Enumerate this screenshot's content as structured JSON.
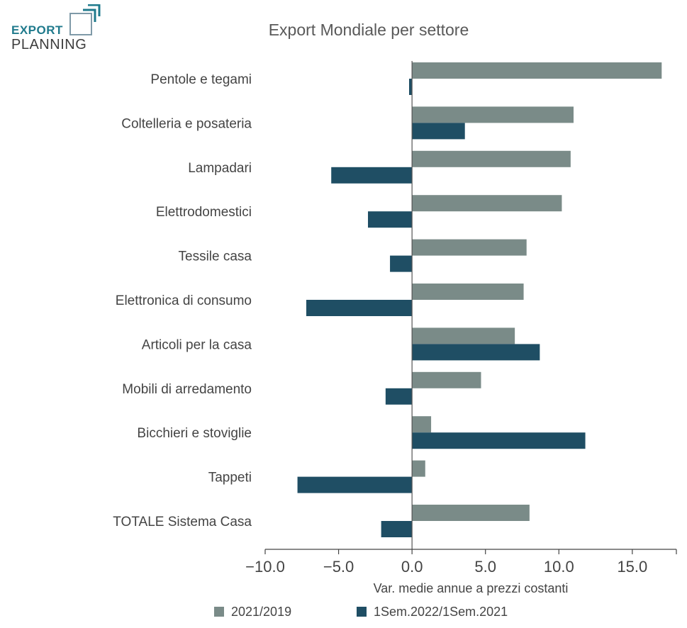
{
  "logo": {
    "line1": "EXPORT",
    "line2": "PLANNING"
  },
  "chart_data": {
    "type": "bar",
    "orientation": "horizontal",
    "title": "Export Mondiale per settore",
    "xlabel": "Var. medie annue a prezzi costanti",
    "ylabel": "",
    "xlim": [
      -10.0,
      18.0
    ],
    "xticks": [
      -10.0,
      -5.0,
      0.0,
      5.0,
      10.0,
      15.0
    ],
    "xtick_labels": [
      "−10.0",
      "−5.0",
      "0.0",
      "5.0",
      "10.0",
      "15.0"
    ],
    "grid": false,
    "legend_position": "bottom",
    "categories": [
      "Pentole e tegami",
      "Coltelleria e posateria",
      "Lampadari",
      "Elettrodomestici",
      "Tessile casa",
      "Elettronica di consumo",
      "Articoli per la casa",
      "Mobili di arredamento",
      "Bicchieri e stoviglie",
      "Tappeti",
      "TOTALE Sistema Casa"
    ],
    "series": [
      {
        "name": "2021/2019",
        "color": "#7a8b88",
        "values": [
          17.0,
          11.0,
          10.8,
          10.2,
          7.8,
          7.6,
          7.0,
          4.7,
          1.3,
          0.9,
          8.0
        ]
      },
      {
        "name": "1Sem.2022/1Sem.2021",
        "color": "#1f4e64",
        "values": [
          -0.2,
          3.6,
          -5.5,
          -3.0,
          -1.5,
          -7.2,
          8.7,
          -1.8,
          11.8,
          -7.8,
          -2.1
        ]
      }
    ]
  }
}
